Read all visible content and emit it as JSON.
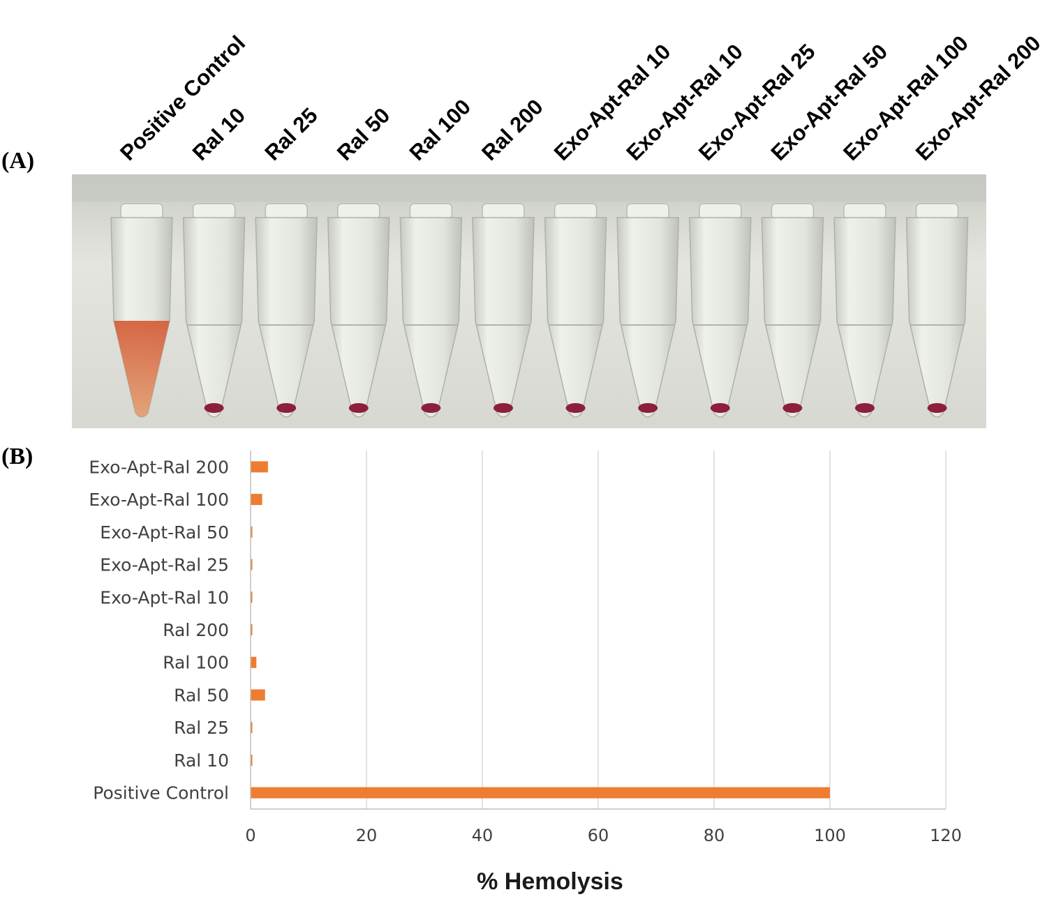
{
  "panel_a_label": "(A)",
  "panel_b_label": "(B)",
  "photo": {
    "tube_labels": [
      "Positive Control",
      "Ral 10",
      "Ral 25",
      "Ral 50",
      "Ral 100",
      "Ral 200",
      "Exo-Apt-Ral 10",
      "Exo-Apt-Ral 10",
      "Exo-Apt-Ral 25",
      "Exo-Apt-Ral 50",
      "Exo-Apt-Ral 100",
      "Exo-Apt-Ral 200"
    ],
    "colors": {
      "background": "#d9dbd4",
      "positive_liquid": "#d9784a",
      "pellet": "#8c1f3c"
    }
  },
  "chart_data": {
    "type": "bar",
    "orientation": "horizontal",
    "categories": [
      "Positive Control",
      "Ral 10",
      "Ral 25",
      "Ral 50",
      "Ral 100",
      "Ral 200",
      "Exo-Apt-Ral 10",
      "Exo-Apt-Ral 25",
      "Exo-Apt-Ral 50",
      "Exo-Apt-Ral 100",
      "Exo-Apt-Ral 200"
    ],
    "values": [
      100,
      0.3,
      0.3,
      2.5,
      1,
      0.3,
      0.3,
      0.3,
      0.3,
      2,
      3
    ],
    "xlabel": "% Hemolysis",
    "ylabel": "",
    "xlim": [
      0,
      120
    ],
    "xticks": [
      0,
      20,
      40,
      60,
      80,
      100,
      120
    ],
    "grid": true,
    "bar_color": "#ed7d31"
  }
}
